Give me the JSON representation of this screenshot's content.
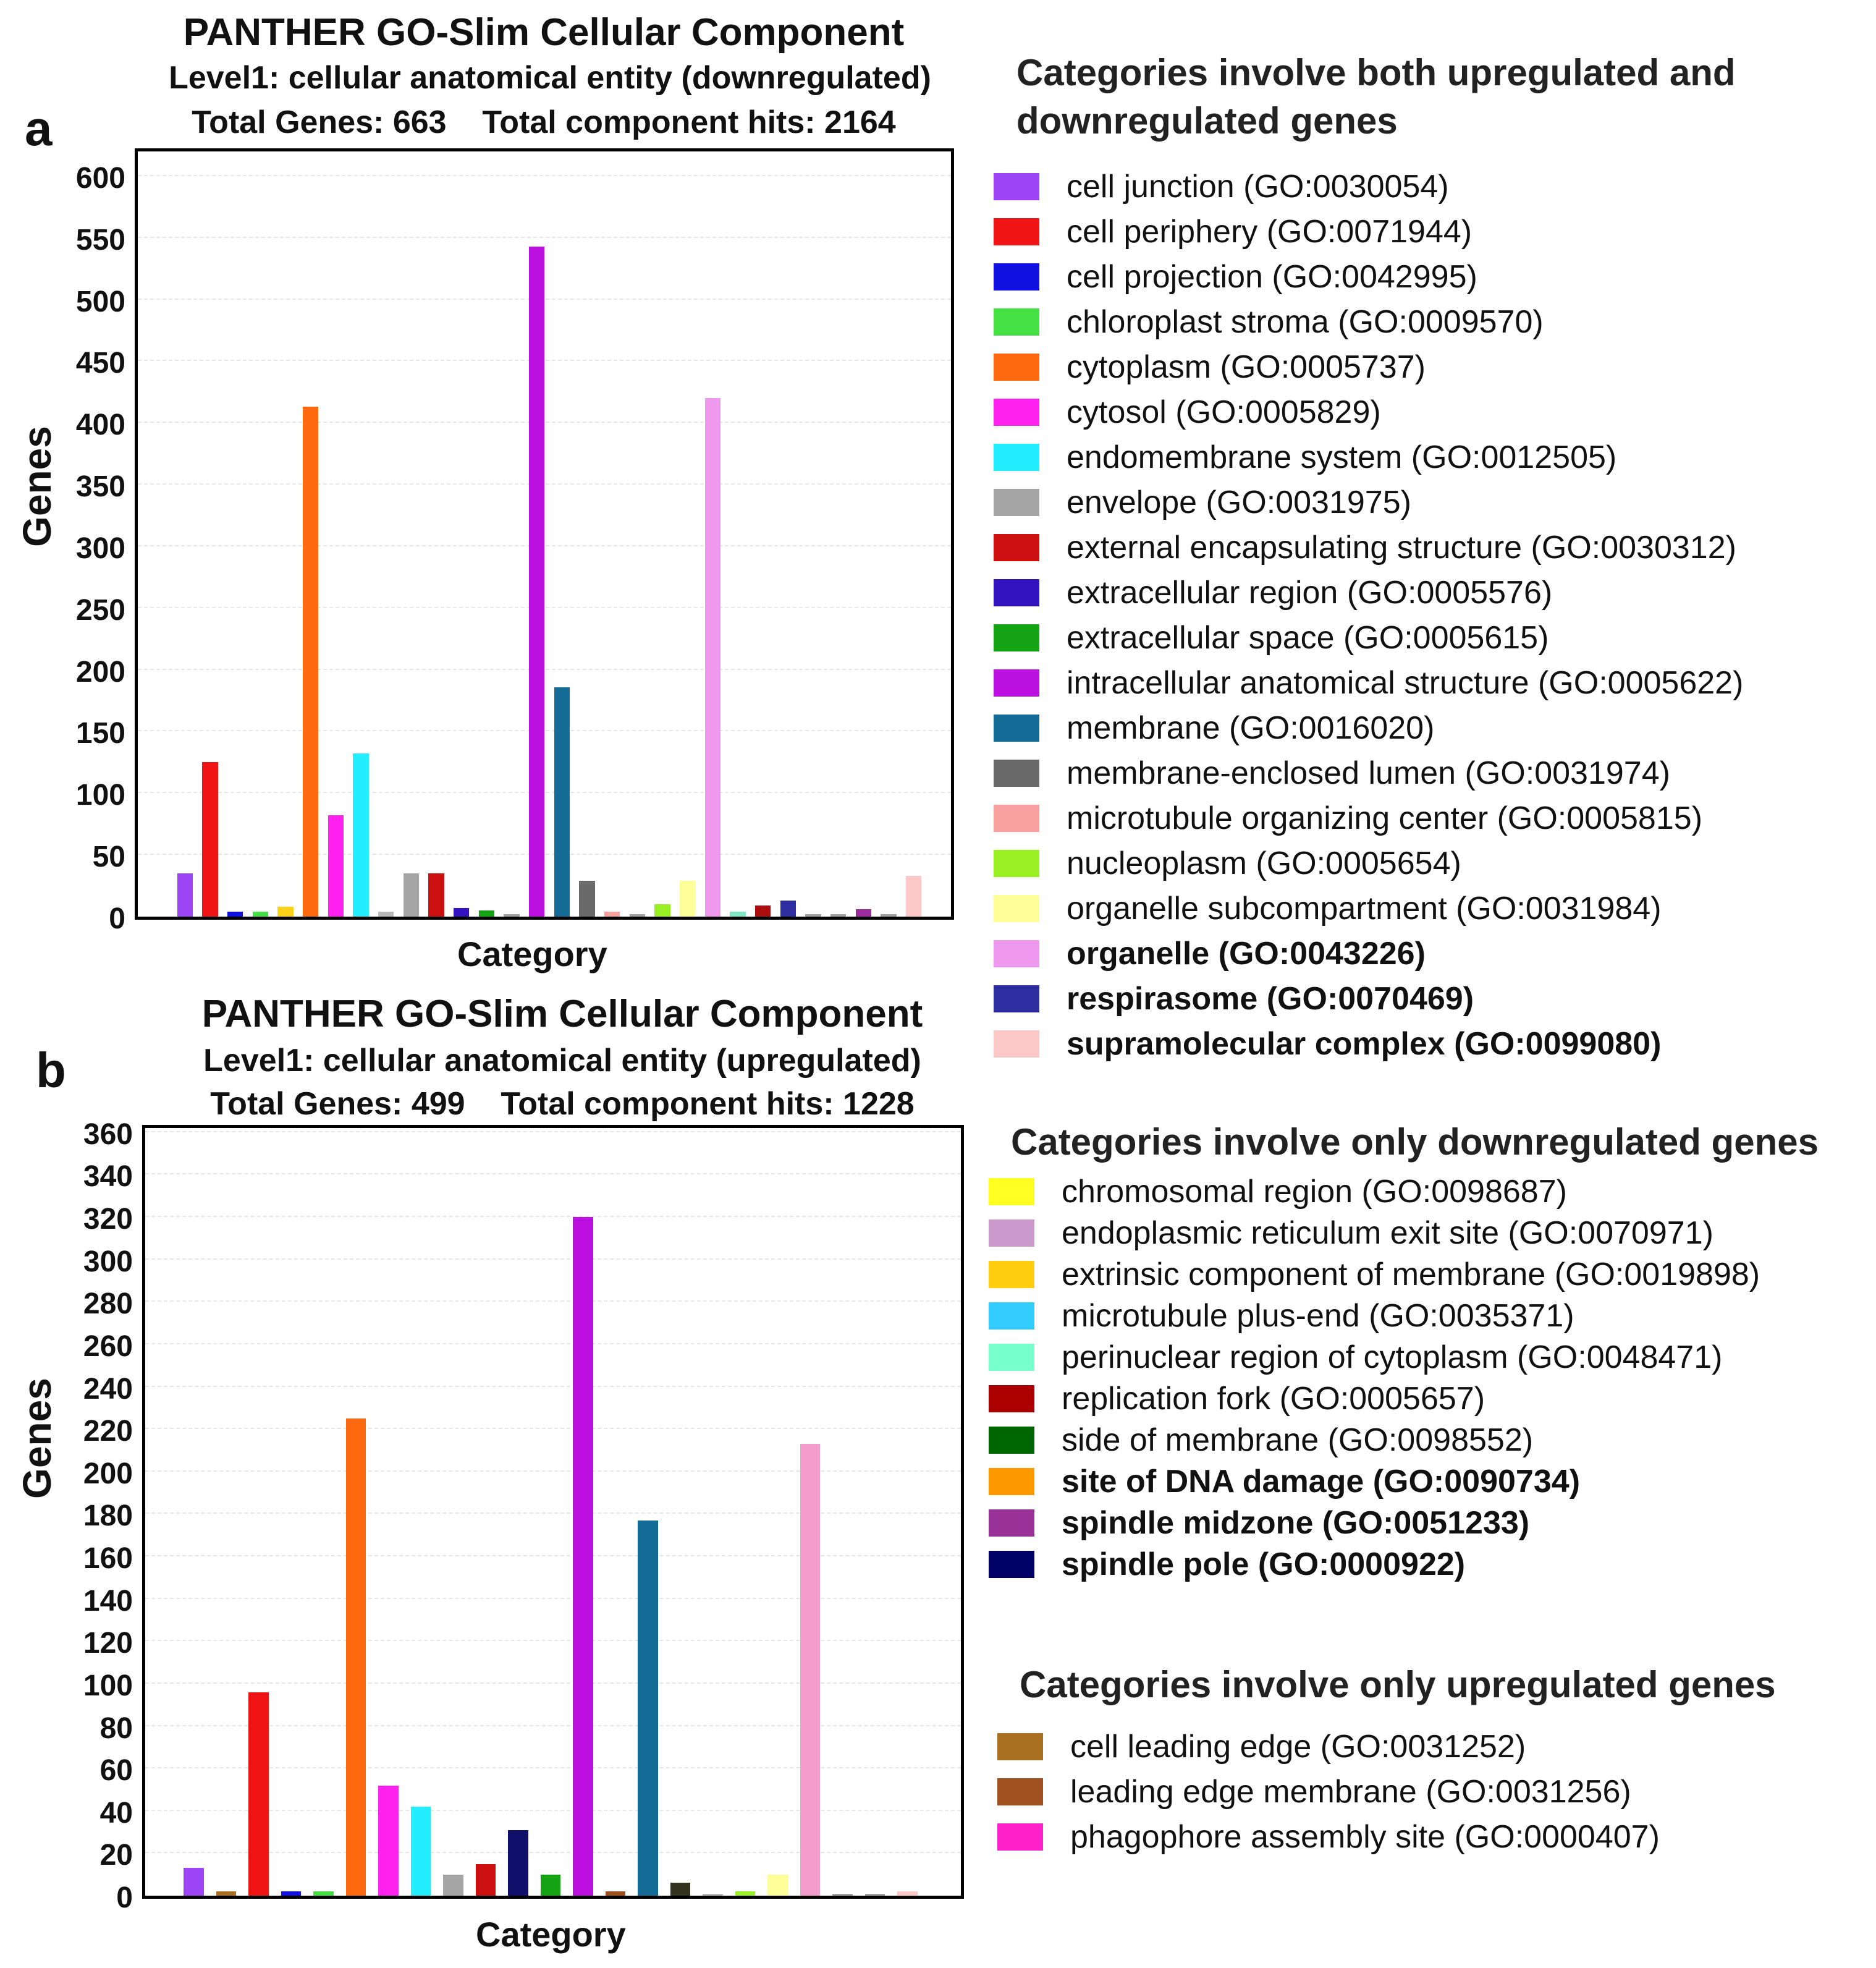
{
  "chart_data": [
    {
      "id": "a",
      "type": "bar",
      "panel_letter": "a",
      "title": "PANTHER GO-Slim Cellular Component",
      "subtitle": "Level1: cellular anatomical entity (downregulated)",
      "totals": "Total Genes: 663    Total component hits: 2164",
      "xlabel": "Category",
      "ylabel": "Genes",
      "ylim": [
        0,
        620
      ],
      "yticks": [
        0,
        50,
        100,
        150,
        200,
        250,
        300,
        350,
        400,
        450,
        500,
        550,
        600
      ],
      "bars": [
        {
          "value": 35,
          "color": "#9c45f5"
        },
        {
          "value": 125,
          "color": "#f01414"
        },
        {
          "value": 4,
          "color": "#1010e0"
        },
        {
          "value": 4,
          "color": "#44e044"
        },
        {
          "value": 8,
          "color": "#ffd21a"
        },
        {
          "value": 413,
          "color": "#ff6a10"
        },
        {
          "value": 82,
          "color": "#ff22ee"
        },
        {
          "value": 132,
          "color": "#22eeff"
        },
        {
          "value": 4,
          "color": "#b8b8b8"
        },
        {
          "value": 35,
          "color": "#a5a5a5"
        },
        {
          "value": 35,
          "color": "#cc1010"
        },
        {
          "value": 7,
          "color": "#3312c0"
        },
        {
          "value": 5,
          "color": "#13a313"
        },
        {
          "value": 2,
          "color": "#a0a0a0"
        },
        {
          "value": 543,
          "color": "#bb10e0"
        },
        {
          "value": 186,
          "color": "#136b96"
        },
        {
          "value": 29,
          "color": "#6a6a6a"
        },
        {
          "value": 4,
          "color": "#f6a0a0"
        },
        {
          "value": 2,
          "color": "#a0a0a0"
        },
        {
          "value": 10,
          "color": "#99f022"
        },
        {
          "value": 29,
          "color": "#ffff99"
        },
        {
          "value": 420,
          "color": "#ee99ee"
        },
        {
          "value": 4,
          "color": "#7ee8c4"
        },
        {
          "value": 9,
          "color": "#aa0e0e"
        },
        {
          "value": 13,
          "color": "#2e2ea0"
        },
        {
          "value": 2,
          "color": "#a0a0a0"
        },
        {
          "value": 2,
          "color": "#a0a0a0"
        },
        {
          "value": 6,
          "color": "#9e2aa0"
        },
        {
          "value": 2,
          "color": "#a0a0a0"
        },
        {
          "value": 33,
          "color": "#fcc8c8"
        }
      ]
    },
    {
      "id": "b",
      "type": "bar",
      "panel_letter": "b",
      "title": "PANTHER GO-Slim Cellular Component",
      "subtitle": "Level1: cellular anatomical entity (upregulated)",
      "totals": "Total Genes: 499    Total component hits: 1228",
      "xlabel": "Category",
      "ylabel": "Genes",
      "ylim": [
        0,
        362
      ],
      "yticks": [
        0,
        20,
        40,
        60,
        80,
        100,
        120,
        140,
        160,
        180,
        200,
        220,
        240,
        260,
        280,
        300,
        320,
        340,
        360
      ],
      "bars": [
        {
          "value": 13,
          "color": "#9c45f5"
        },
        {
          "value": 2,
          "color": "#a87020"
        },
        {
          "value": 96,
          "color": "#f01414"
        },
        {
          "value": 2,
          "color": "#1010e0"
        },
        {
          "value": 2,
          "color": "#44e044"
        },
        {
          "value": 225,
          "color": "#ff6a10"
        },
        {
          "value": 52,
          "color": "#ff22ee"
        },
        {
          "value": 42,
          "color": "#22eeff"
        },
        {
          "value": 10,
          "color": "#a5a5a5"
        },
        {
          "value": 15,
          "color": "#cc1010"
        },
        {
          "value": 31,
          "color": "#10106a"
        },
        {
          "value": 10,
          "color": "#13a313"
        },
        {
          "value": 320,
          "color": "#bb10e0"
        },
        {
          "value": 2,
          "color": "#a0501e"
        },
        {
          "value": 177,
          "color": "#136b96"
        },
        {
          "value": 6,
          "color": "#333320"
        },
        {
          "value": 1,
          "color": "#b8b8b8"
        },
        {
          "value": 2,
          "color": "#99f022"
        },
        {
          "value": 10,
          "color": "#ffff99"
        },
        {
          "value": 213,
          "color": "#f49ccc"
        },
        {
          "value": 1,
          "color": "#a0a0a0"
        },
        {
          "value": 1,
          "color": "#a0a0a0"
        },
        {
          "value": 2,
          "color": "#fcc8c8"
        }
      ]
    }
  ],
  "legend": {
    "both": {
      "heading_line1": "Categories involve both upregulated and",
      "heading_line2": "downregulated genes",
      "items": [
        {
          "label": "cell junction (GO:0030054)",
          "color": "#9c45f5"
        },
        {
          "label": "cell periphery (GO:0071944)",
          "color": "#f01414"
        },
        {
          "label": "cell projection (GO:0042995)",
          "color": "#1010e0"
        },
        {
          "label": "chloroplast stroma (GO:0009570)",
          "color": "#44e044"
        },
        {
          "label": "cytoplasm (GO:0005737)",
          "color": "#ff6a10"
        },
        {
          "label": "cytosol (GO:0005829)",
          "color": "#ff22ee"
        },
        {
          "label": "endomembrane system (GO:0012505)",
          "color": "#22eeff"
        },
        {
          "label": "envelope (GO:0031975)",
          "color": "#a5a5a5"
        },
        {
          "label": "external encapsulating structure (GO:0030312)",
          "color": "#cc1010"
        },
        {
          "label": "extracellular region (GO:0005576)",
          "color": "#3312c0"
        },
        {
          "label": "extracellular space (GO:0005615)",
          "color": "#13a313"
        },
        {
          "label": "intracellular anatomical structure (GO:0005622)",
          "color": "#bb10e0"
        },
        {
          "label": "membrane (GO:0016020)",
          "color": "#136b96"
        },
        {
          "label": "membrane-enclosed lumen (GO:0031974)",
          "color": "#6a6a6a"
        },
        {
          "label": "microtubule organizing center (GO:0005815)",
          "color": "#f6a0a0"
        },
        {
          "label": "nucleoplasm (GO:0005654)",
          "color": "#99f022"
        },
        {
          "label": "organelle subcompartment (GO:0031984)",
          "color": "#ffff99"
        },
        {
          "label": "organelle (GO:0043226)",
          "color": "#ee99ee",
          "bold": true
        },
        {
          "label": "respirasome (GO:0070469)",
          "color": "#2e2ea0",
          "bold": true
        },
        {
          "label": "supramolecular complex (GO:0099080)",
          "color": "#fcc8c8",
          "bold": true
        }
      ]
    },
    "down": {
      "heading": "Categories involve only downregulated genes",
      "items": [
        {
          "label": "chromosomal region (GO:0098687)",
          "color": "#ffff22"
        },
        {
          "label": "endoplasmic reticulum exit site (GO:0070971)",
          "color": "#cc99cc"
        },
        {
          "label": "extrinsic component of membrane (GO:0019898)",
          "color": "#ffcc10"
        },
        {
          "label": "microtubule plus-end (GO:0035371)",
          "color": "#33ccff"
        },
        {
          "label": "perinuclear region of cytoplasm (GO:0048471)",
          "color": "#77ffcc"
        },
        {
          "label": "replication fork (GO:0005657)",
          "color": "#aa0000"
        },
        {
          "label": "side of membrane (GO:0098552)",
          "color": "#006600"
        },
        {
          "label": "site of DNA damage (GO:0090734)",
          "color": "#ff9900",
          "bold": true
        },
        {
          "label": "spindle midzone (GO:0051233)",
          "color": "#993399",
          "bold": true
        },
        {
          "label": "spindle pole (GO:0000922)",
          "color": "#000066",
          "bold": true
        }
      ]
    },
    "up": {
      "heading": "Categories involve only upregulated genes",
      "items": [
        {
          "label": "cell leading edge (GO:0031252)",
          "color": "#a87020"
        },
        {
          "label": "leading edge membrane (GO:0031256)",
          "color": "#a0501e"
        },
        {
          "label": "phagophore assembly site (GO:0000407)",
          "color": "#ff22cc"
        }
      ]
    }
  }
}
